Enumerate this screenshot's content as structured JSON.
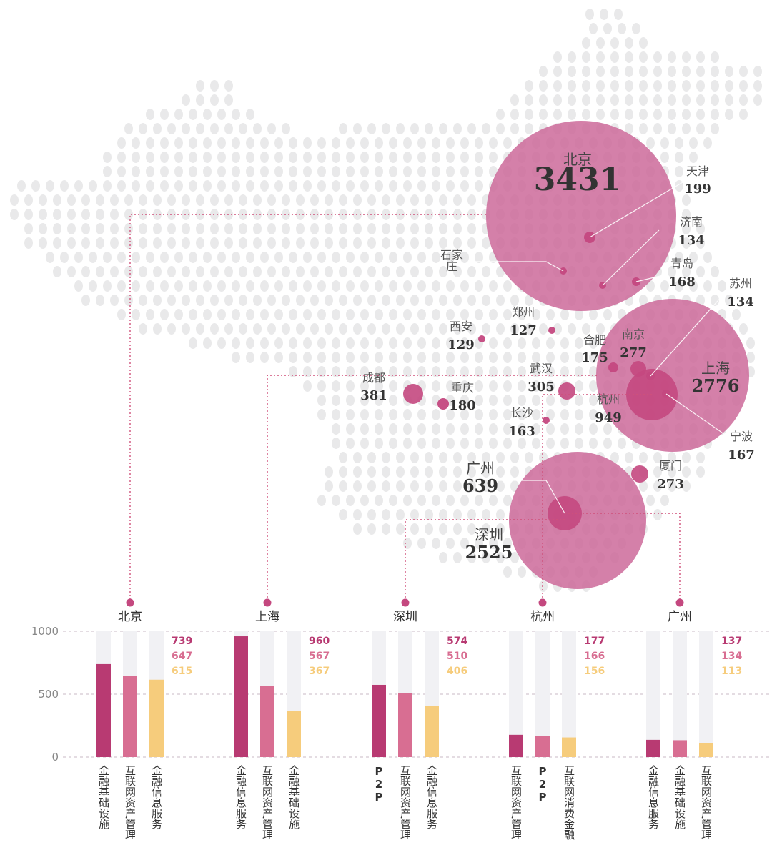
{
  "colors": {
    "bubble_big": "#cd6a9a",
    "bubble_small": "#c4487f",
    "bar1": "#b83a72",
    "bar2": "#d86e92",
    "bar3": "#f6cc7c",
    "bar_bg": "#f1f1f4",
    "dots": "#e9e9ea",
    "connector": "#d0507a"
  },
  "map_cities": [
    {
      "name": "北京",
      "value": "3431",
      "key": "beijing"
    },
    {
      "name": "天津",
      "value": "199",
      "key": "tianjin"
    },
    {
      "name": "济南",
      "value": "134",
      "key": "jinan"
    },
    {
      "name": "石家庄",
      "value": "",
      "key": "shijiazhuang"
    },
    {
      "name": "青岛",
      "value": "168",
      "key": "qingdao"
    },
    {
      "name": "苏州",
      "value": "134",
      "key": "suzhou"
    },
    {
      "name": "郑州",
      "value": "127",
      "key": "zhengzhou"
    },
    {
      "name": "西安",
      "value": "129",
      "key": "xian"
    },
    {
      "name": "合肥",
      "value": "175",
      "key": "hefei"
    },
    {
      "name": "南京",
      "value": "277",
      "key": "nanjing"
    },
    {
      "name": "上海",
      "value": "2776",
      "key": "shanghai"
    },
    {
      "name": "成都",
      "value": "381",
      "key": "chengdu"
    },
    {
      "name": "重庆",
      "value": "180",
      "key": "chongqing"
    },
    {
      "name": "武汉",
      "value": "305",
      "key": "wuhan"
    },
    {
      "name": "杭州",
      "value": "949",
      "key": "hangzhou"
    },
    {
      "name": "长沙",
      "value": "163",
      "key": "changsha"
    },
    {
      "name": "宁波",
      "value": "167",
      "key": "ningbo"
    },
    {
      "name": "广州",
      "value": "639",
      "key": "guangzhou"
    },
    {
      "name": "厦门",
      "value": "273",
      "key": "xiamen"
    },
    {
      "name": "深圳",
      "value": "2525",
      "key": "shenzhen"
    }
  ],
  "chart_data": {
    "type": "bar",
    "ylim": [
      0,
      1000
    ],
    "yticks": [
      "1000",
      "500",
      "0"
    ],
    "groups": [
      {
        "city": "北京",
        "bars": [
          {
            "category": "金融基础设施",
            "value": 739
          },
          {
            "category": "互联网资产管理",
            "value": 647
          },
          {
            "category": "金融信息服务",
            "value": 615
          }
        ]
      },
      {
        "city": "上海",
        "bars": [
          {
            "category": "金融信息服务",
            "value": 960
          },
          {
            "category": "互联网资产管理",
            "value": 567
          },
          {
            "category": "金融基础设施",
            "value": 367
          }
        ]
      },
      {
        "city": "深圳",
        "bars": [
          {
            "category": "P2P",
            "value": 574
          },
          {
            "category": "互联网资产管理",
            "value": 510
          },
          {
            "category": "金融信息服务",
            "value": 406
          }
        ]
      },
      {
        "city": "杭州",
        "bars": [
          {
            "category": "互联网资产管理",
            "value": 177
          },
          {
            "category": "P2P",
            "value": 166
          },
          {
            "category": "互联网消费金融",
            "value": 156
          }
        ]
      },
      {
        "city": "广州",
        "bars": [
          {
            "category": "金融信息服务",
            "value": 137
          },
          {
            "category": "金融基础设施",
            "value": 134
          },
          {
            "category": "互联网资产管理",
            "value": 113
          }
        ]
      }
    ]
  }
}
